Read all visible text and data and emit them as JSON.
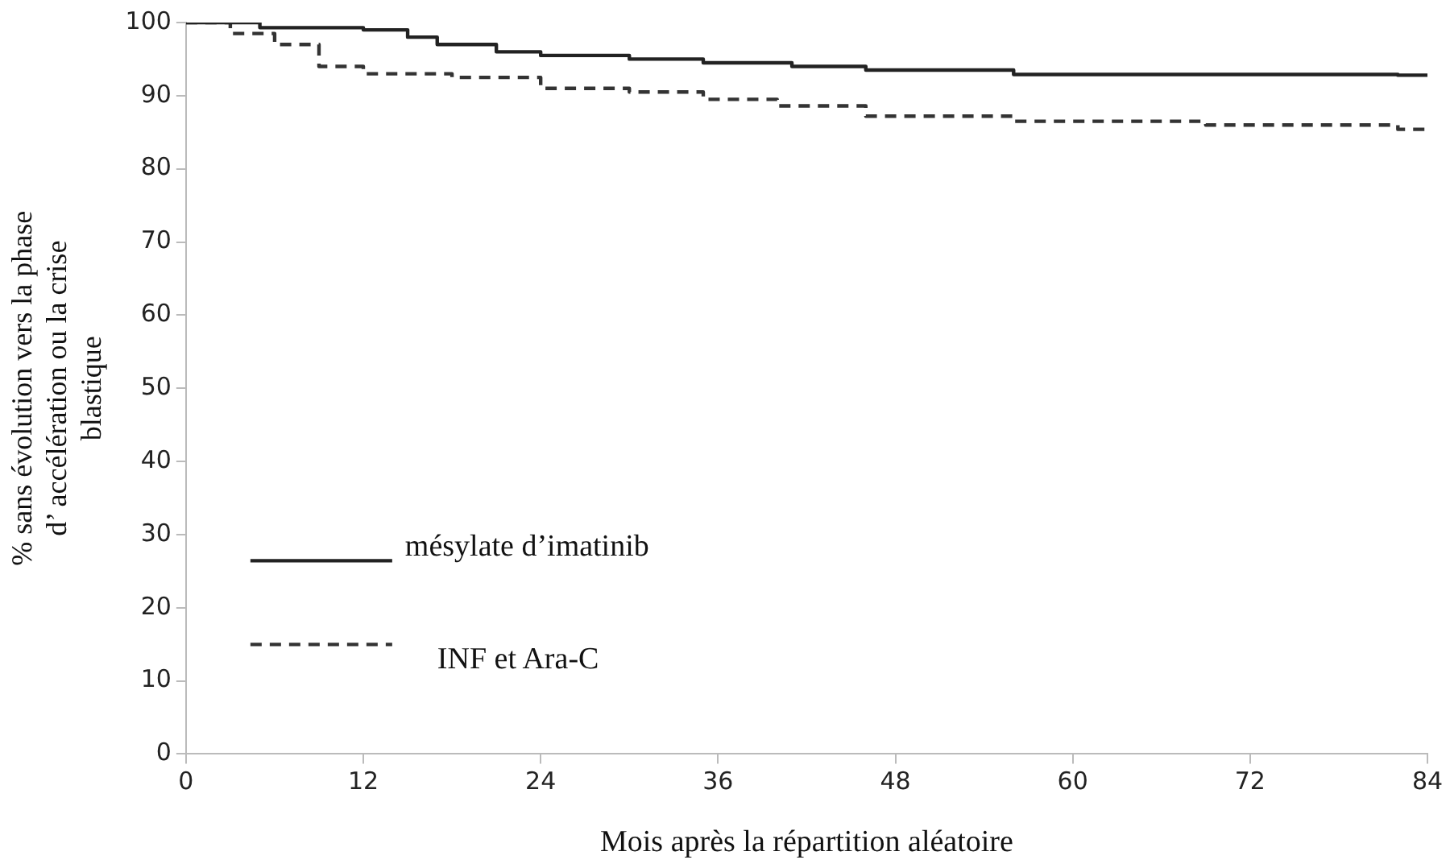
{
  "chart_data": {
    "type": "step",
    "xlabel": "Mois après la répartition aléatoire",
    "ylabel": "% sans évolution vers la phase d’ accélération ou la crise blastique",
    "xlim": [
      0,
      84
    ],
    "xticks": [
      0,
      12,
      24,
      36,
      48,
      60,
      72,
      84
    ],
    "ylim": [
      0,
      100
    ],
    "yticks": [
      0,
      10,
      20,
      30,
      40,
      50,
      60,
      70,
      80,
      90,
      100
    ],
    "grid": false,
    "legend": "bottom left",
    "marker": "none",
    "series": [
      {
        "name": "mésylate d’imatinib",
        "color": "#222222",
        "line_style": "solid",
        "x": [
          0,
          5,
          12,
          15,
          17,
          21,
          24,
          30,
          35,
          41,
          46,
          56,
          82,
          84
        ],
        "values": [
          100,
          99.3,
          99,
          98,
          97,
          96,
          95.5,
          95,
          94.5,
          94,
          93.5,
          92.9,
          92.8,
          92.8
        ]
      },
      {
        "name": "INF et Ara-C",
        "color": "#333333",
        "line_style": "dashed",
        "x": [
          0,
          3,
          6,
          9,
          12,
          18,
          24,
          30,
          35,
          40,
          46,
          56,
          69,
          82,
          84
        ],
        "values": [
          100,
          98.5,
          97,
          94,
          93,
          92.5,
          91,
          90.5,
          89.5,
          88.6,
          87.2,
          86.5,
          86,
          85.4,
          85.4
        ]
      }
    ]
  }
}
